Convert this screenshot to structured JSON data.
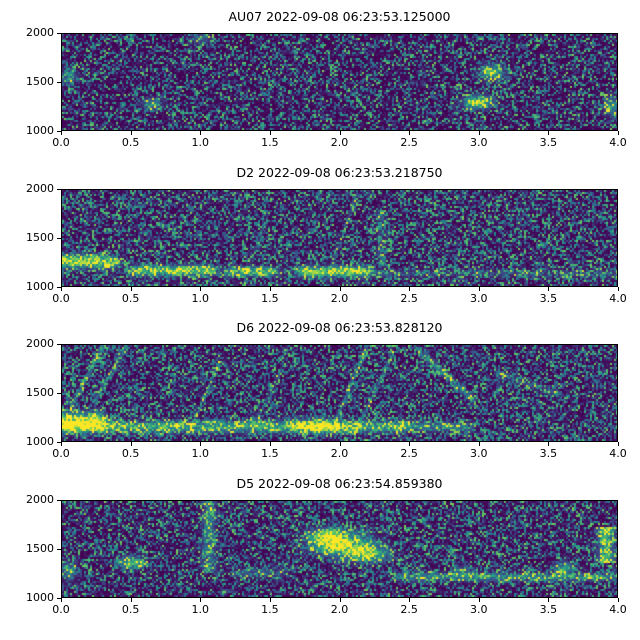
{
  "figure_title": "",
  "colormap_stops": [
    "#440154",
    "#3b528b",
    "#21918c",
    "#5ec962",
    "#fde725"
  ],
  "chart_data": [
    {
      "type": "heatmap",
      "subtype": "spectrogram",
      "title": "AU07 2022-09-08 06:23:53.125000",
      "xlim": [
        0.0,
        4.0
      ],
      "ylim": [
        1000,
        2000
      ],
      "xticks": [
        "0.0",
        "0.5",
        "1.0",
        "1.5",
        "2.0",
        "2.5",
        "3.0",
        "3.5",
        "4.0"
      ],
      "yticks": [
        "1000",
        "1500",
        "2000"
      ],
      "colormap": "viridis",
      "grid": false,
      "legend": false,
      "noise": {
        "seed": 101,
        "gamma": 3.2,
        "scale": 0.8
      },
      "features": [
        {
          "type": "blob",
          "x": 3.0,
          "y": 1290,
          "sx": 0.07,
          "sy": 45,
          "i": 1.0
        },
        {
          "type": "blob",
          "x": 3.1,
          "y": 1600,
          "sx": 0.06,
          "sy": 55,
          "i": 0.85
        },
        {
          "type": "blob",
          "x": 0.65,
          "y": 1270,
          "sx": 0.05,
          "sy": 40,
          "i": 0.6
        },
        {
          "type": "blob",
          "x": 3.96,
          "y": 1250,
          "sx": 0.04,
          "sy": 70,
          "i": 0.6
        },
        {
          "type": "blob",
          "x": 0.05,
          "y": 1560,
          "sx": 0.04,
          "sy": 60,
          "i": 0.5
        },
        {
          "type": "blob",
          "x": 1.0,
          "y": 1950,
          "sx": 0.05,
          "sy": 40,
          "i": 0.4
        }
      ]
    },
    {
      "type": "heatmap",
      "subtype": "spectrogram",
      "title": "D2 2022-09-08 06:23:53.218750",
      "xlim": [
        0.0,
        4.0
      ],
      "ylim": [
        1000,
        2000
      ],
      "xticks": [
        "0.0",
        "0.5",
        "1.0",
        "1.5",
        "2.0",
        "2.5",
        "3.0",
        "3.5",
        "4.0"
      ],
      "yticks": [
        "1000",
        "1500",
        "2000"
      ],
      "colormap": "viridis",
      "grid": false,
      "legend": false,
      "noise": {
        "seed": 202,
        "gamma": 2.6,
        "scale": 0.8
      },
      "features": [
        {
          "type": "band",
          "x0": 0.0,
          "x1": 0.35,
          "y": 1240,
          "sy": 40,
          "i": 0.8
        },
        {
          "type": "band",
          "x0": 0.05,
          "x1": 0.3,
          "y": 1300,
          "sy": 30,
          "i": 0.4
        },
        {
          "type": "band",
          "x0": 0.55,
          "x1": 1.05,
          "y": 1160,
          "sy": 38,
          "i": 0.85
        },
        {
          "type": "band",
          "x0": 1.25,
          "x1": 1.5,
          "y": 1150,
          "sy": 33,
          "i": 0.8
        },
        {
          "type": "band",
          "x0": 1.75,
          "x1": 2.15,
          "y": 1150,
          "sy": 38,
          "i": 0.9
        },
        {
          "type": "band",
          "x0": 2.2,
          "x1": 4.0,
          "y": 1130,
          "sy": 28,
          "i": 0.22
        },
        {
          "type": "streak",
          "x0": 1.95,
          "y0": 1250,
          "x1": 2.1,
          "y1": 1850,
          "t": 35,
          "i": 0.3
        },
        {
          "type": "streak",
          "x0": 1.35,
          "y0": 1200,
          "x1": 1.45,
          "y1": 1600,
          "t": 30,
          "i": 0.25
        },
        {
          "type": "vband",
          "x": 2.3,
          "y0": 1300,
          "y1": 1750,
          "sx": 0.03,
          "i": 0.2
        }
      ]
    },
    {
      "type": "heatmap",
      "subtype": "spectrogram",
      "title": "D6 2022-09-08 06:23:53.828120",
      "xlim": [
        0.0,
        4.0
      ],
      "ylim": [
        1000,
        2000
      ],
      "xticks": [
        "0.0",
        "0.5",
        "1.0",
        "1.5",
        "2.0",
        "2.5",
        "3.0",
        "3.5",
        "4.0"
      ],
      "yticks": [
        "1000",
        "1500",
        "2000"
      ],
      "colormap": "viridis",
      "grid": false,
      "legend": false,
      "noise": {
        "seed": 303,
        "gamma": 2.6,
        "scale": 0.8
      },
      "features": [
        {
          "type": "band",
          "x0": 0.0,
          "x1": 0.25,
          "y": 1200,
          "sy": 65,
          "i": 1.0
        },
        {
          "type": "band",
          "x0": 0.0,
          "x1": 2.45,
          "y": 1150,
          "sy": 42,
          "i": 0.65
        },
        {
          "type": "blob",
          "x": 1.85,
          "y": 1150,
          "sx": 0.12,
          "sy": 45,
          "i": 0.85
        },
        {
          "type": "band",
          "x0": 2.55,
          "x1": 2.9,
          "y": 1150,
          "sy": 33,
          "i": 0.45
        },
        {
          "type": "streak",
          "x0": 0.1,
          "y0": 1450,
          "x1": 0.3,
          "y1": 2000,
          "t": 32,
          "i": 0.5
        },
        {
          "type": "streak",
          "x0": 0.27,
          "y0": 1500,
          "x1": 0.45,
          "y1": 1950,
          "t": 30,
          "i": 0.4
        },
        {
          "type": "streak",
          "x0": 0.95,
          "y0": 1200,
          "x1": 1.1,
          "y1": 1700,
          "t": 28,
          "i": 0.35
        },
        {
          "type": "streak",
          "x0": 1.4,
          "y0": 1200,
          "x1": 1.55,
          "y1": 1650,
          "t": 28,
          "i": 0.3
        },
        {
          "type": "streak",
          "x0": 2.0,
          "y0": 1300,
          "x1": 2.2,
          "y1": 2000,
          "t": 32,
          "i": 0.5
        },
        {
          "type": "streak",
          "x0": 2.15,
          "y0": 1200,
          "x1": 2.35,
          "y1": 1800,
          "t": 30,
          "i": 0.4
        },
        {
          "type": "streak",
          "x0": 2.6,
          "y0": 1900,
          "x1": 2.95,
          "y1": 1450,
          "t": 32,
          "i": 0.45
        },
        {
          "type": "streak",
          "x0": 3.15,
          "y0": 1700,
          "x1": 3.55,
          "y1": 1500,
          "t": 28,
          "i": 0.28
        }
      ]
    },
    {
      "type": "heatmap",
      "subtype": "spectrogram",
      "title": "D5 2022-09-08 06:23:54.859380",
      "xlim": [
        0.0,
        4.0
      ],
      "ylim": [
        1000,
        2000
      ],
      "xticks": [
        "0.0",
        "0.5",
        "1.0",
        "1.5",
        "2.0",
        "2.5",
        "3.0",
        "3.5",
        "4.0"
      ],
      "yticks": [
        "1000",
        "1500",
        "2000"
      ],
      "colormap": "viridis",
      "grid": false,
      "legend": false,
      "noise": {
        "seed": 404,
        "gamma": 2.8,
        "scale": 0.8
      },
      "features": [
        {
          "type": "blob",
          "x": 2.0,
          "y": 1550,
          "sx": 0.14,
          "sy": 85,
          "i": 1.0
        },
        {
          "type": "blob",
          "x": 2.2,
          "y": 1460,
          "sx": 0.1,
          "sy": 65,
          "i": 0.85
        },
        {
          "type": "blob",
          "x": 1.9,
          "y": 1630,
          "sx": 0.08,
          "sy": 55,
          "i": 0.8
        },
        {
          "type": "vband",
          "x": 1.06,
          "y0": 1300,
          "y1": 2000,
          "sx": 0.035,
          "i": 0.45
        },
        {
          "type": "blob",
          "x": 0.5,
          "y": 1360,
          "sx": 0.06,
          "sy": 45,
          "i": 0.85
        },
        {
          "type": "blob",
          "x": 0.05,
          "y": 1270,
          "sx": 0.04,
          "sy": 70,
          "i": 0.5
        },
        {
          "type": "band",
          "x0": 2.45,
          "x1": 3.95,
          "y": 1210,
          "sy": 30,
          "i": 0.5
        },
        {
          "type": "blob",
          "x": 3.62,
          "y": 1300,
          "sx": 0.05,
          "sy": 45,
          "i": 0.6
        },
        {
          "type": "vband",
          "x": 3.92,
          "y0": 1400,
          "y1": 1680,
          "sx": 0.04,
          "i": 0.8
        },
        {
          "type": "band",
          "x0": 1.3,
          "x1": 1.55,
          "y": 1250,
          "sy": 35,
          "i": 0.3
        },
        {
          "type": "blob",
          "x": 2.9,
          "y": 1280,
          "sx": 0.05,
          "sy": 40,
          "i": 0.35
        }
      ]
    }
  ]
}
